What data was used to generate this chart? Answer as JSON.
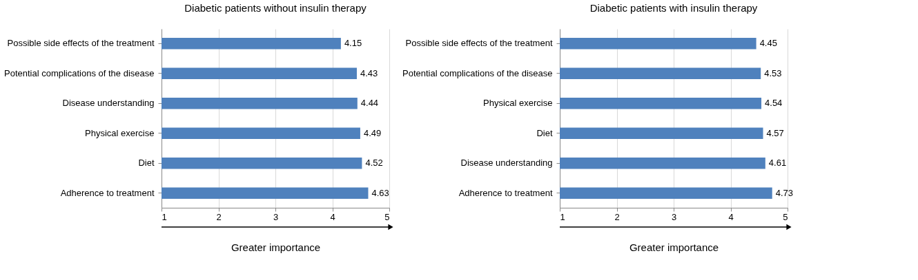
{
  "chart_data": [
    {
      "type": "bar",
      "orientation": "horizontal",
      "title": "Diabetic patients without insulin therapy",
      "xlabel": "Greater importance",
      "categories": [
        "Possible side effects of the treatment",
        "Potential complications of the disease",
        "Disease understanding",
        "Physical exercise",
        "Diet",
        "Adherence to treatment"
      ],
      "values": [
        4.15,
        4.43,
        4.44,
        4.49,
        4.52,
        4.63
      ],
      "color": "#4f81bd",
      "xlim": [
        1,
        5
      ],
      "xticks": [
        1,
        2,
        3,
        4,
        5
      ],
      "grid": "x",
      "data_labels": true
    },
    {
      "type": "bar",
      "orientation": "horizontal",
      "title": "Diabetic patients with insulin therapy",
      "xlabel": "Greater importance",
      "categories": [
        "Possible side effects of the treatment",
        "Potential complications of the disease",
        "Physical exercise",
        "Diet",
        "Disease understanding",
        "Adherence to treatment"
      ],
      "values": [
        4.45,
        4.53,
        4.54,
        4.57,
        4.61,
        4.73
      ],
      "color": "#4f81bd",
      "xlim": [
        1,
        5
      ],
      "xticks": [
        1,
        2,
        3,
        4,
        5
      ],
      "grid": "x",
      "data_labels": true
    }
  ]
}
